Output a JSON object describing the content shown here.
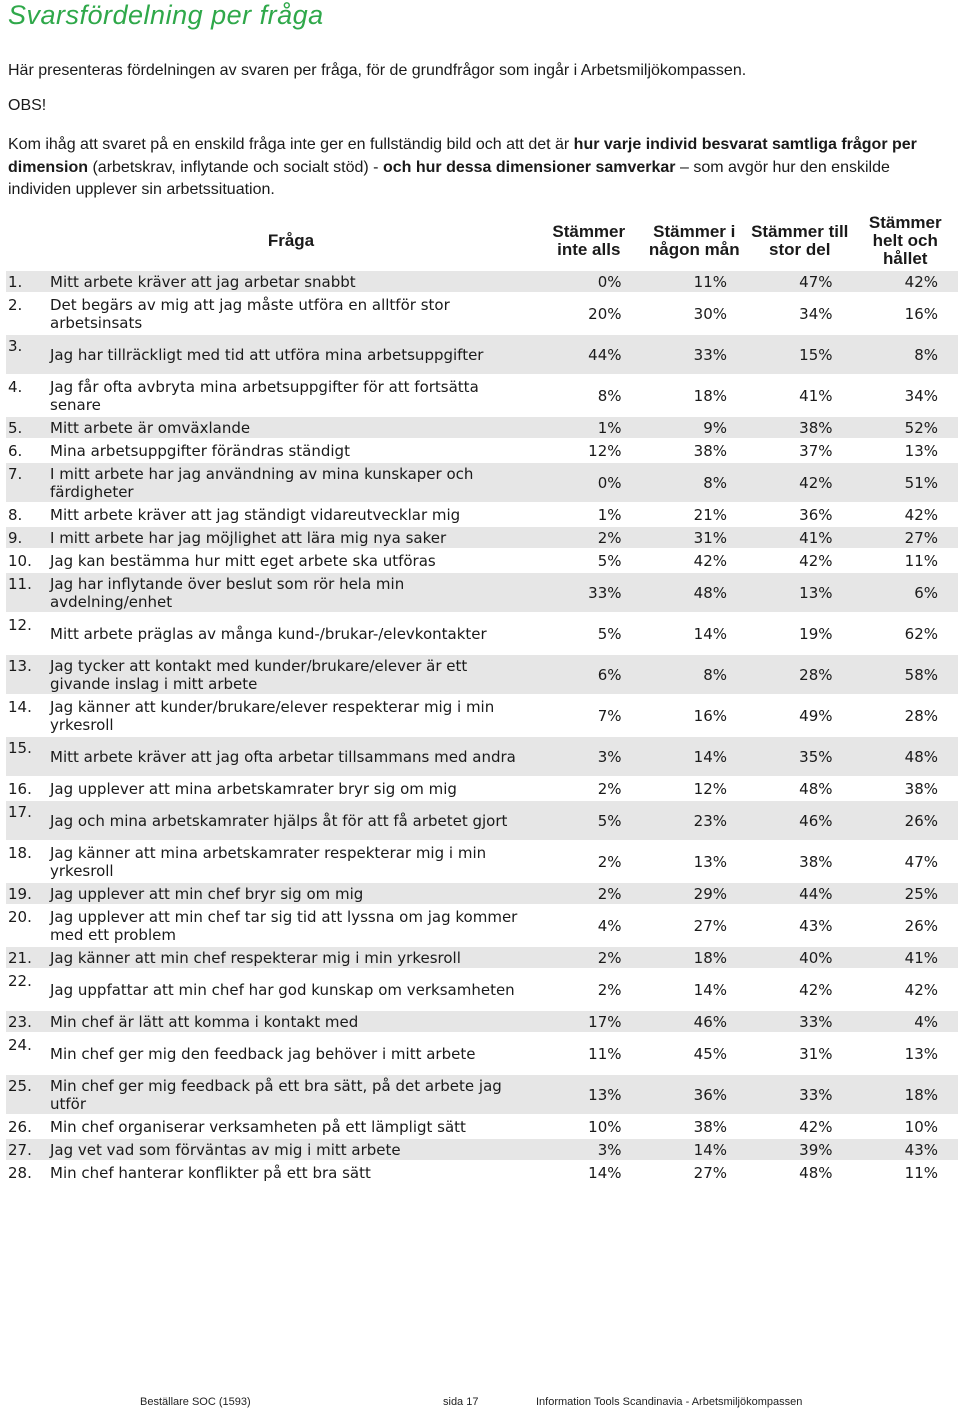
{
  "title": "Svarsfördelning per fråga",
  "intro": "Här presenteras fördelningen av svaren per fråga, för de grundfrågor som ingår i Arbetsmiljökompassen.",
  "obs": "OBS!",
  "note": {
    "p1": "Kom ihåg att svaret på en enskild fråga inte ger en fullständig bild och att det är ",
    "b1": "hur varje individ besvarat samtliga frågor per dimension",
    "p2": " (arbetskrav, inflytande och socialt stöd) - ",
    "b2": "och hur dessa dimensioner samverkar",
    "p3": " – som avgör hur den enskilde individen upplever sin arbetssituation."
  },
  "table": {
    "headers": {
      "question": "Fråga",
      "c1": "Stämmer inte alls",
      "c2": "Stämmer i någon mån",
      "c3": "Stämmer till stor del",
      "c4": "Stämmer helt och hållet"
    },
    "rows": [
      {
        "num": "1.",
        "text": "Mitt arbete kräver att jag arbetar snabbt",
        "v": [
          "0%",
          "11%",
          "47%",
          "42%"
        ]
      },
      {
        "num": "2.",
        "text": "Det begärs av mig att jag måste utföra en alltför stor arbetsinsats",
        "v": [
          "20%",
          "30%",
          "34%",
          "16%"
        ]
      },
      {
        "num": "3.",
        "text": "Jag har tillräckligt med tid att utföra mina arbetsuppgifter",
        "v": [
          "44%",
          "33%",
          "15%",
          "8%"
        ]
      },
      {
        "num": "4.",
        "text": "Jag får ofta avbryta mina arbetsuppgifter för att fortsätta senare",
        "v": [
          "8%",
          "18%",
          "41%",
          "34%"
        ]
      },
      {
        "num": "5.",
        "text": "Mitt arbete är omväxlande",
        "v": [
          "1%",
          "9%",
          "38%",
          "52%"
        ]
      },
      {
        "num": "6.",
        "text": "Mina arbetsuppgifter förändras ständigt",
        "v": [
          "12%",
          "38%",
          "37%",
          "13%"
        ]
      },
      {
        "num": "7.",
        "text": "I mitt arbete har jag användning av mina kunskaper och färdigheter",
        "v": [
          "0%",
          "8%",
          "42%",
          "51%"
        ]
      },
      {
        "num": "8.",
        "text": "Mitt arbete kräver att jag ständigt vidareutvecklar mig",
        "v": [
          "1%",
          "21%",
          "36%",
          "42%"
        ]
      },
      {
        "num": "9.",
        "text": "I mitt arbete har jag möjlighet att lära mig nya saker",
        "v": [
          "2%",
          "31%",
          "41%",
          "27%"
        ]
      },
      {
        "num": "10.",
        "text": "Jag kan bestämma hur mitt eget arbete ska utföras",
        "v": [
          "5%",
          "42%",
          "42%",
          "11%"
        ]
      },
      {
        "num": "11.",
        "text": "Jag har inflytande över beslut som rör hela min avdelning/enhet",
        "v": [
          "33%",
          "48%",
          "13%",
          "6%"
        ]
      },
      {
        "num": "12.",
        "text": "Mitt arbete präglas av många kund-/brukar-/elevkontakter",
        "v": [
          "5%",
          "14%",
          "19%",
          "62%"
        ]
      },
      {
        "num": "13.",
        "text": "Jag tycker att kontakt med kunder/brukare/elever är ett givande inslag i mitt arbete",
        "v": [
          "6%",
          "8%",
          "28%",
          "58%"
        ]
      },
      {
        "num": "14.",
        "text": "Jag känner att kunder/brukare/elever respekterar mig i min yrkesroll",
        "v": [
          "7%",
          "16%",
          "49%",
          "28%"
        ]
      },
      {
        "num": "15.",
        "text": "Mitt arbete kräver att jag ofta arbetar tillsammans med andra",
        "v": [
          "3%",
          "14%",
          "35%",
          "48%"
        ]
      },
      {
        "num": "16.",
        "text": "Jag upplever att mina arbetskamrater bryr sig om mig",
        "v": [
          "2%",
          "12%",
          "48%",
          "38%"
        ]
      },
      {
        "num": "17.",
        "text": "Jag och mina arbetskamrater hjälps åt för att få arbetet gjort",
        "v": [
          "5%",
          "23%",
          "46%",
          "26%"
        ]
      },
      {
        "num": "18.",
        "text": "Jag känner att mina arbetskamrater respekterar mig i min yrkesroll",
        "v": [
          "2%",
          "13%",
          "38%",
          "47%"
        ]
      },
      {
        "num": "19.",
        "text": "Jag upplever att min chef bryr sig om mig",
        "v": [
          "2%",
          "29%",
          "44%",
          "25%"
        ]
      },
      {
        "num": "20.",
        "text": "Jag upplever att min chef tar sig tid att lyssna om jag kommer med ett problem",
        "v": [
          "4%",
          "27%",
          "43%",
          "26%"
        ]
      },
      {
        "num": "21.",
        "text": "Jag känner att min chef respekterar mig i min yrkesroll",
        "v": [
          "2%",
          "18%",
          "40%",
          "41%"
        ]
      },
      {
        "num": "22.",
        "text": "Jag uppfattar att min chef har god kunskap om verksamheten",
        "v": [
          "2%",
          "14%",
          "42%",
          "42%"
        ]
      },
      {
        "num": "23.",
        "text": "Min chef är lätt att komma i kontakt med",
        "v": [
          "17%",
          "46%",
          "33%",
          "4%"
        ]
      },
      {
        "num": "24.",
        "text": "Min chef ger mig den feedback jag behöver i mitt arbete",
        "v": [
          "11%",
          "45%",
          "31%",
          "13%"
        ]
      },
      {
        "num": "25.",
        "text": "Min chef ger mig feedback på ett bra sätt, på det arbete jag utför",
        "v": [
          "13%",
          "36%",
          "33%",
          "18%"
        ]
      },
      {
        "num": "26.",
        "text": "Min chef organiserar verksamheten på ett lämpligt sätt",
        "v": [
          "10%",
          "38%",
          "42%",
          "10%"
        ]
      },
      {
        "num": "27.",
        "text": "Jag vet vad som förväntas av mig i mitt arbete",
        "v": [
          "3%",
          "14%",
          "39%",
          "43%"
        ]
      },
      {
        "num": "28.",
        "text": "Min chef hanterar konflikter på ett bra sätt",
        "v": [
          "14%",
          "27%",
          "48%",
          "11%"
        ]
      }
    ]
  },
  "footer": {
    "orderer": "Beställare SOC (1593)",
    "page": "sida 17",
    "source": "Information Tools Scandinavia - Arbetsmiljökompassen"
  }
}
